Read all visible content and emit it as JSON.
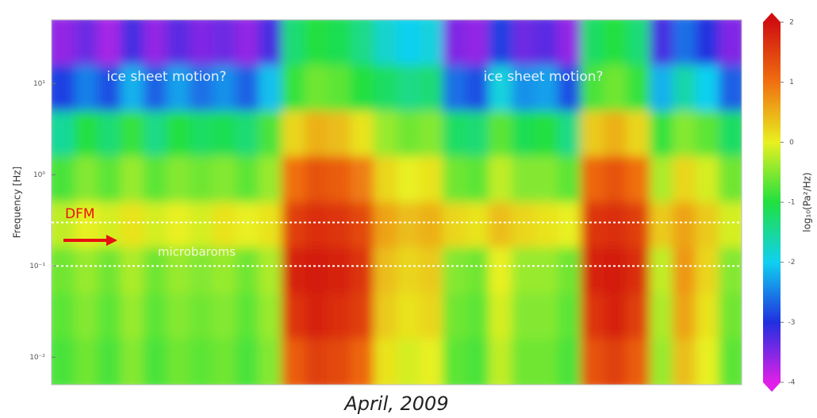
{
  "chart_data": {
    "type": "heatmap",
    "x_label": "April, 2009",
    "y_label": "Frequency [Hz]",
    "categories": [
      null,
      null,
      null,
      null,
      null,
      null,
      null,
      null,
      null,
      null,
      null,
      null,
      null,
      null,
      null,
      null,
      null,
      null,
      null,
      null,
      null,
      null,
      null,
      null,
      null,
      null,
      null,
      null,
      null,
      null
    ],
    "y_edges": [
      50,
      16,
      5,
      1.6,
      0.5,
      0.16,
      0.05,
      0.016,
      0.005
    ],
    "z": [
      [
        -3.6,
        -3.4,
        -3.7,
        -3.2,
        -3.6,
        -3.3,
        -3.5,
        -3.4,
        -3.6,
        -3.2,
        -1.3,
        -1.0,
        -1.1,
        -1.4,
        -1.8,
        -2.0,
        -1.9,
        -3.5,
        -3.6,
        -2.9,
        -3.4,
        -3.3,
        -3.6,
        -1.2,
        -1.0,
        -1.3,
        -3.2,
        -2.6,
        -3.0,
        -3.5
      ],
      [
        -2.9,
        -2.5,
        -2.8,
        -2.2,
        -2.7,
        -2.3,
        -2.6,
        -2.4,
        -2.7,
        -2.1,
        -0.9,
        -0.6,
        -0.7,
        -1.0,
        -1.2,
        -1.4,
        -1.3,
        -2.6,
        -2.8,
        -1.9,
        -2.4,
        -2.3,
        -2.8,
        -0.8,
        -0.6,
        -0.9,
        -2.2,
        -1.6,
        -2.0,
        -2.7
      ],
      [
        -1.5,
        -1.0,
        -1.3,
        -0.9,
        -1.4,
        -1.0,
        -1.2,
        -1.1,
        -1.3,
        -0.8,
        0.2,
        0.5,
        0.4,
        0.1,
        -0.4,
        -0.6,
        -0.5,
        -1.2,
        -1.3,
        -0.7,
        -1.1,
        -1.0,
        -1.4,
        0.3,
        0.5,
        0.2,
        -0.9,
        -0.5,
        -0.7,
        -1.2
      ],
      [
        -0.8,
        -0.5,
        -0.7,
        -0.4,
        -0.7,
        -0.5,
        -0.6,
        -0.5,
        -0.7,
        -0.4,
        1.0,
        1.3,
        1.2,
        0.9,
        0.2,
        0.0,
        0.1,
        -0.6,
        -0.7,
        -0.2,
        -0.5,
        -0.5,
        -0.7,
        1.1,
        1.3,
        1.0,
        -0.3,
        0.2,
        -0.1,
        -0.6
      ],
      [
        -0.2,
        0.0,
        -0.1,
        0.1,
        -0.1,
        0.0,
        -0.1,
        0.1,
        0.0,
        0.1,
        1.5,
        1.7,
        1.6,
        1.4,
        0.6,
        0.4,
        0.5,
        0.2,
        0.1,
        0.4,
        0.2,
        0.1,
        0.0,
        1.6,
        1.7,
        1.5,
        0.3,
        0.6,
        0.3,
        -0.1
      ],
      [
        -0.6,
        -0.4,
        -0.6,
        -0.3,
        -0.6,
        -0.4,
        -0.5,
        -0.4,
        -0.6,
        -0.3,
        1.8,
        1.9,
        1.8,
        1.6,
        0.4,
        0.2,
        0.3,
        -0.5,
        -0.6,
        0.0,
        -0.4,
        -0.4,
        -0.6,
        1.8,
        1.9,
        1.7,
        -0.2,
        0.7,
        0.2,
        -0.5
      ],
      [
        -0.7,
        -0.5,
        -0.7,
        -0.4,
        -0.7,
        -0.5,
        -0.6,
        -0.5,
        -0.7,
        -0.4,
        1.6,
        1.8,
        1.7,
        1.5,
        0.3,
        0.1,
        0.2,
        -0.6,
        -0.7,
        -0.1,
        -0.5,
        -0.5,
        -0.7,
        1.6,
        1.8,
        1.5,
        -0.3,
        0.6,
        0.1,
        -0.6
      ],
      [
        -0.8,
        -0.6,
        -0.8,
        -0.5,
        -0.8,
        -0.6,
        -0.7,
        -0.6,
        -0.8,
        -0.5,
        1.2,
        1.5,
        1.4,
        1.1,
        0.1,
        -0.1,
        0.0,
        -0.7,
        -0.8,
        -0.2,
        -0.6,
        -0.6,
        -0.8,
        1.3,
        1.5,
        1.2,
        -0.4,
        0.4,
        0.0,
        -0.7
      ]
    ],
    "ylim": [
      0.005,
      50
    ],
    "yscale": "log",
    "yticks": [
      {
        "value": 10,
        "label": "10¹"
      },
      {
        "value": 1,
        "label": "10⁰"
      },
      {
        "value": 0.1,
        "label": "10⁻¹"
      },
      {
        "value": 0.01,
        "label": "10⁻²"
      }
    ],
    "hlines": [
      0.3,
      0.1
    ],
    "colormap": [
      "#e020e8",
      "#2030e0",
      "#10d0f0",
      "#20e040",
      "#e8f020",
      "#f07010",
      "#d01010"
    ],
    "zlim": [
      -4,
      2
    ],
    "zticks": [
      -4,
      -3,
      -2,
      -1,
      0,
      1,
      2
    ],
    "colorbar_label": "log₁₀(Pa²/Hz)",
    "annotations": [
      "ice sheet motion?",
      "ice sheet motion?",
      "microbaroms",
      "DFM"
    ]
  }
}
